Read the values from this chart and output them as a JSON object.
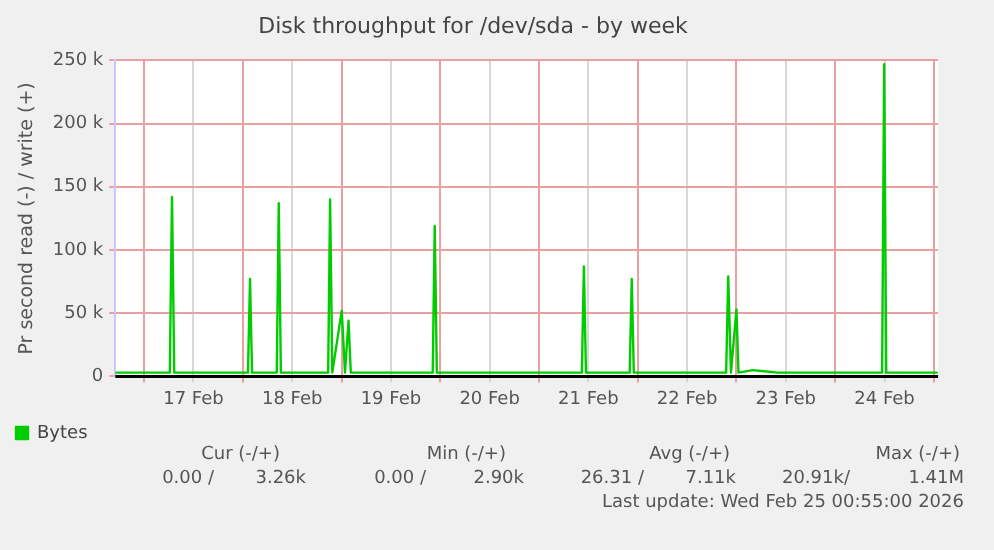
{
  "chart_data": {
    "type": "line",
    "title": "Disk throughput for /dev/sda - by week",
    "ylabel": "Pr second read (-) / write (+)",
    "xlim": [
      "2026-02-16T17:00",
      "2026-02-25T01:00"
    ],
    "xticks": [
      {
        "value": "2026-02-17T00:00",
        "label": null
      },
      {
        "value": "2026-02-17T12:00",
        "label": "17 Feb"
      },
      {
        "value": "2026-02-18T00:00",
        "label": null
      },
      {
        "value": "2026-02-18T12:00",
        "label": "18 Feb"
      },
      {
        "value": "2026-02-19T00:00",
        "label": null
      },
      {
        "value": "2026-02-19T12:00",
        "label": "19 Feb"
      },
      {
        "value": "2026-02-20T00:00",
        "label": null
      },
      {
        "value": "2026-02-20T12:00",
        "label": "20 Feb"
      },
      {
        "value": "2026-02-21T00:00",
        "label": null
      },
      {
        "value": "2026-02-21T12:00",
        "label": "21 Feb"
      },
      {
        "value": "2026-02-22T00:00",
        "label": null
      },
      {
        "value": "2026-02-22T12:00",
        "label": "22 Feb"
      },
      {
        "value": "2026-02-23T00:00",
        "label": null
      },
      {
        "value": "2026-02-23T12:00",
        "label": "23 Feb"
      },
      {
        "value": "2026-02-24T00:00",
        "label": null
      },
      {
        "value": "2026-02-24T12:00",
        "label": "24 Feb"
      },
      {
        "value": "2026-02-25T00:00",
        "label": null
      }
    ],
    "ylim": [
      0,
      250000
    ],
    "yticks": [
      0,
      {
        "value": 50000,
        "label": "50 k"
      },
      {
        "value": 100000,
        "label": "100 k"
      },
      {
        "value": 150000,
        "label": "150 k"
      },
      {
        "value": 200000,
        "label": "200 k"
      },
      {
        "value": 250000,
        "label": "250 k"
      }
    ],
    "grid": true,
    "legend": "bottom left",
    "marker": "none",
    "line_style": "solid",
    "ref_lines": [
      {
        "axis": "y",
        "value": 0,
        "color": "#000000"
      }
    ],
    "series": [
      {
        "name": "Bytes",
        "color": "#00cc00",
        "x": [
          "2026-02-16T17:00",
          "2026-02-17T06:15",
          "2026-02-17T06:47",
          "2026-02-17T07:20",
          "2026-02-18T01:15",
          "2026-02-18T01:45",
          "2026-02-18T02:15",
          "2026-02-18T08:15",
          "2026-02-18T08:44",
          "2026-02-18T09:15",
          "2026-02-18T20:45",
          "2026-02-18T21:13",
          "2026-02-18T21:45",
          "2026-02-19T00:03",
          "2026-02-19T00:50",
          "2026-02-19T01:42",
          "2026-02-19T02:15",
          "2026-02-19T22:10",
          "2026-02-19T22:39",
          "2026-02-19T23:10",
          "2026-02-21T10:25",
          "2026-02-21T10:55",
          "2026-02-21T11:25",
          "2026-02-21T22:03",
          "2026-02-21T22:33",
          "2026-02-21T23:03",
          "2026-02-22T21:30",
          "2026-02-22T22:00",
          "2026-02-22T22:40",
          "2026-02-23T00:00",
          "2026-02-23T00:30",
          "2026-02-23T04:00",
          "2026-02-23T10:00",
          "2026-02-24T11:25",
          "2026-02-24T11:55",
          "2026-02-24T12:25",
          "2026-02-25T00:55"
        ],
        "values": [
          3000,
          3000,
          142000,
          3000,
          3000,
          77000,
          3000,
          3000,
          137000,
          3000,
          3000,
          140000,
          3000,
          52000,
          3000,
          44000,
          3000,
          3000,
          119000,
          3000,
          3000,
          87000,
          3000,
          3000,
          77000,
          3000,
          3000,
          79000,
          3000,
          53000,
          3000,
          5000,
          3000,
          3000,
          247000,
          3000,
          3000
        ]
      }
    ],
    "annotations": [
      "Cur (-/+)",
      "Min (-/+)",
      "Avg (-/+)",
      "Max (-/+)",
      "0.00 /",
      "3.26k",
      "0.00 /",
      "2.90k",
      "26.31 /",
      "7.11k",
      "20.91k/",
      "1.41M",
      "Last update: Wed Feb 25 00:55:00 2026"
    ]
  }
}
